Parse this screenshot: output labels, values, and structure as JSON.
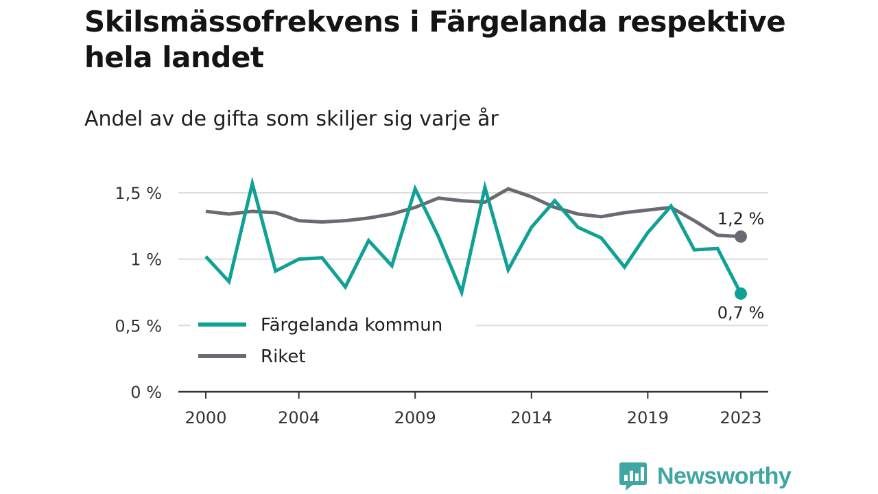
{
  "title": "Skilsmässofrekvens i Färgelanda respektive hela landet",
  "subtitle": "Andel av de gifta som skiljer sig varje år",
  "brand": "Newsworthy",
  "colors": {
    "fargelanda": "#0fa195",
    "riket": "#6b6a72",
    "grid": "#dcdcdc",
    "axis": "#333333",
    "brand": "#3fa6a2"
  },
  "chart_data": {
    "type": "line",
    "xlabel": "",
    "ylabel": "",
    "ylim": [
      0,
      1.5
    ],
    "xlim": [
      2000,
      2023
    ],
    "y_ticks": [
      {
        "value": 0,
        "label": "0 %"
      },
      {
        "value": 0.5,
        "label": "0,5 %"
      },
      {
        "value": 1,
        "label": "1 %"
      },
      {
        "value": 1.5,
        "label": "1,5 %"
      }
    ],
    "x_ticks": [
      {
        "value": 2000,
        "label": "2000"
      },
      {
        "value": 2004,
        "label": "2004"
      },
      {
        "value": 2009,
        "label": "2009"
      },
      {
        "value": 2014,
        "label": "2014"
      },
      {
        "value": 2019,
        "label": "2019"
      },
      {
        "value": 2023,
        "label": "2023"
      }
    ],
    "grid": true,
    "legend_position": "bottom-left",
    "x": [
      2000,
      2001,
      2002,
      2003,
      2004,
      2005,
      2006,
      2007,
      2008,
      2009,
      2010,
      2011,
      2012,
      2013,
      2014,
      2015,
      2016,
      2017,
      2018,
      2019,
      2020,
      2021,
      2022,
      2023
    ],
    "series": [
      {
        "name": "Färgelanda kommun",
        "color": "#0fa195",
        "end_label": "0,7 %",
        "values": [
          1.02,
          0.83,
          1.57,
          0.91,
          1.0,
          1.01,
          0.79,
          1.14,
          0.95,
          1.53,
          1.17,
          0.75,
          1.54,
          0.92,
          1.24,
          1.44,
          1.24,
          1.16,
          0.94,
          1.2,
          1.4,
          1.07,
          1.08,
          0.74
        ]
      },
      {
        "name": "Riket",
        "color": "#6b6a72",
        "end_label": "1,2 %",
        "values": [
          1.36,
          1.34,
          1.36,
          1.35,
          1.29,
          1.28,
          1.29,
          1.31,
          1.34,
          1.39,
          1.46,
          1.44,
          1.43,
          1.53,
          1.47,
          1.39,
          1.34,
          1.32,
          1.35,
          1.37,
          1.39,
          1.29,
          1.18,
          1.17
        ]
      }
    ]
  }
}
